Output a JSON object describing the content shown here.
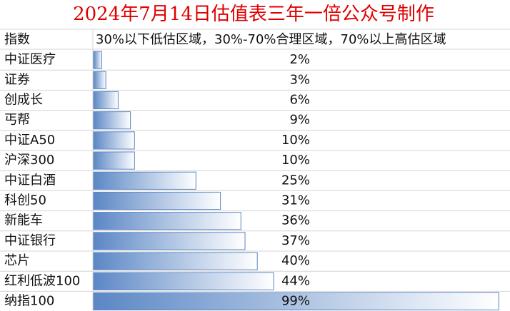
{
  "chart_data": {
    "type": "bar",
    "orientation": "horizontal",
    "title": "2024年7月14日估值表三年一倍公众号制作",
    "category_header": "指数",
    "subtitle": "30%以下低估区域，30%-70%合理区域，70%以上高估区域",
    "categories": [
      "中证医疗",
      "证券",
      "创成长",
      "丐帮",
      "中证A50",
      "沪深300",
      "中证白酒",
      "科创50",
      "新能车",
      "中证银行",
      "芯片",
      "红利低波100",
      "纳指100"
    ],
    "values": [
      2,
      3,
      6,
      9,
      10,
      10,
      25,
      31,
      36,
      37,
      40,
      44,
      99
    ],
    "value_labels": [
      "2%",
      "3%",
      "6%",
      "9%",
      "10%",
      "10%",
      "25%",
      "31%",
      "36%",
      "37%",
      "40%",
      "44%",
      "99%"
    ],
    "color": "#5b87c5"
  }
}
